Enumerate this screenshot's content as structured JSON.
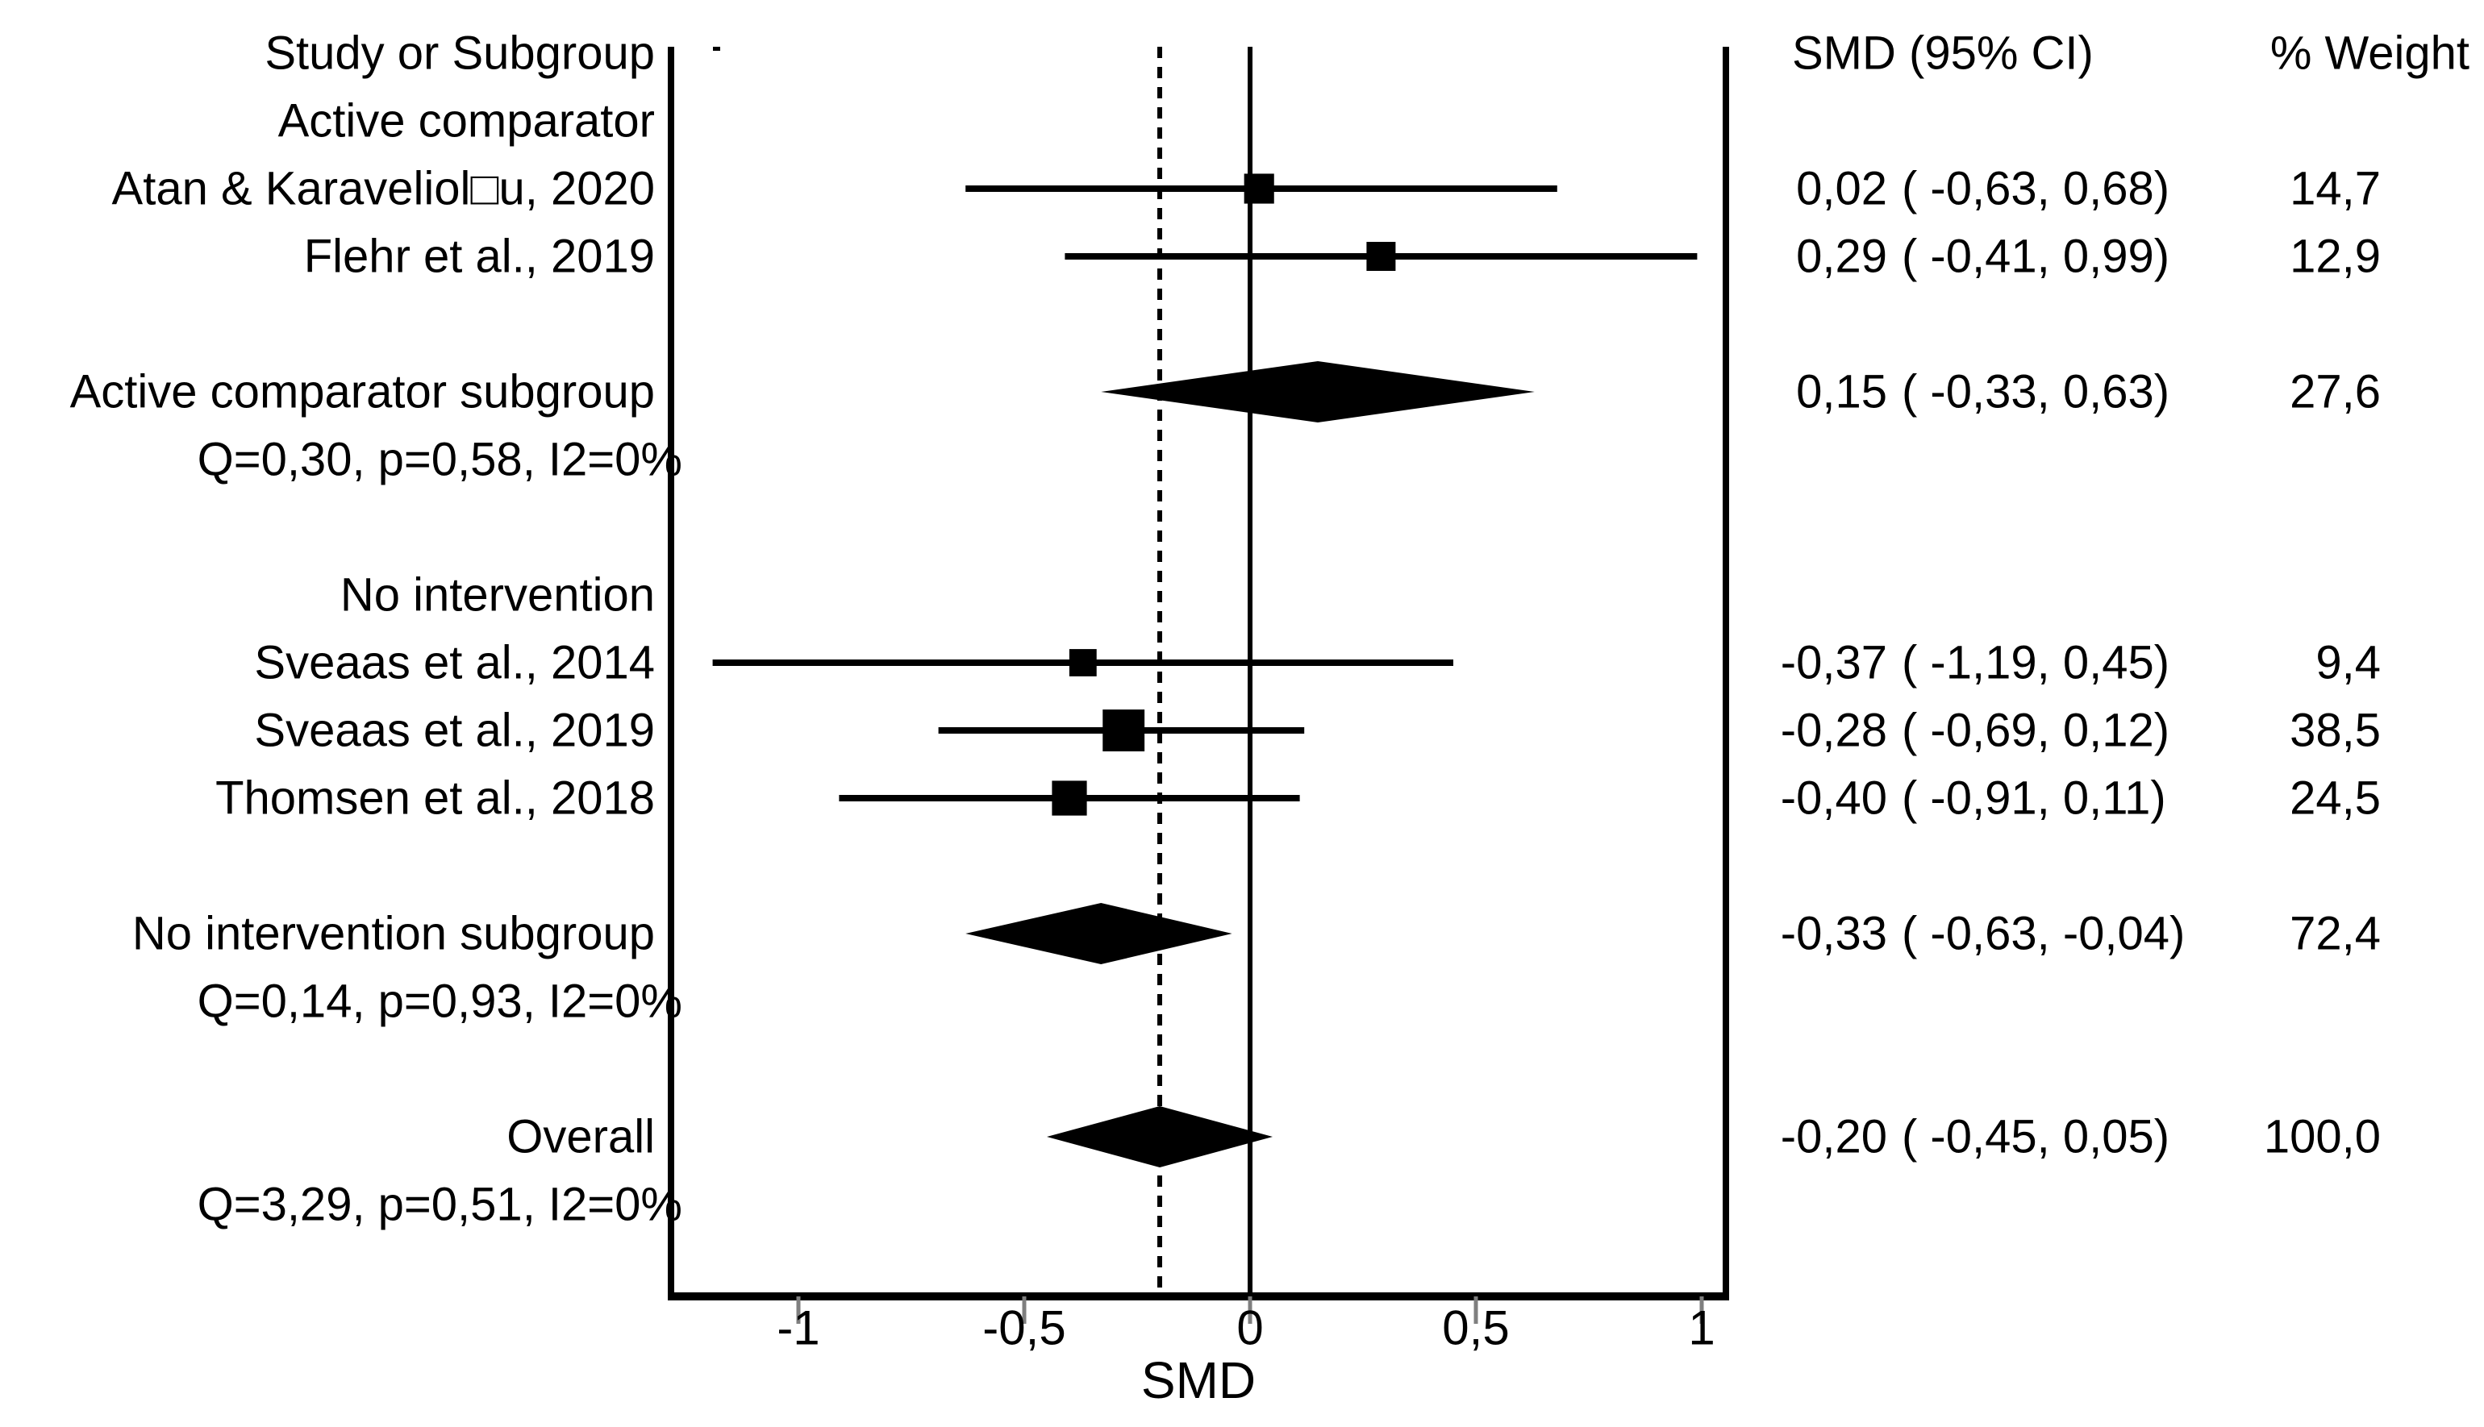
{
  "page": {
    "background": "#ffffff",
    "foreground": "#000000",
    "tick_color": "#7f7f7f"
  },
  "columns": {
    "study": "Study or Subgroup",
    "smd_ci": "SMD (95% CI)",
    "weight": "% Weight"
  },
  "chart_data": {
    "type": "scatter",
    "subtype": "forest-plot",
    "xlabel": "SMD",
    "xlim": [
      -1.28,
      1.05
    ],
    "grid": false,
    "x_ticks": [
      {
        "value": -1,
        "label": "-1"
      },
      {
        "value": -0.5,
        "label": "-0,5"
      },
      {
        "value": 0,
        "label": "0"
      },
      {
        "value": 0.5,
        "label": "0,5"
      },
      {
        "value": 1,
        "label": "1"
      }
    ],
    "reference_line": {
      "value": 0,
      "style": "solid"
    },
    "pooled_line": {
      "value": -0.2,
      "style": "dashed"
    },
    "rows": [
      {
        "slot": 1,
        "type": "group_label",
        "label": "Active comparator"
      },
      {
        "slot": 2,
        "type": "study",
        "label": "Atan & Karaveliol□u, 2020",
        "smd": 0.02,
        "ci_low": -0.63,
        "ci_high": 0.68,
        "weight": 14.7,
        "smd_text": "0,02",
        "ci_text": "( -0,63,  0,68)",
        "weight_text": "14,7"
      },
      {
        "slot": 3,
        "type": "study",
        "label": "Flehr et al., 2019",
        "smd": 0.29,
        "ci_low": -0.41,
        "ci_high": 0.99,
        "weight": 12.9,
        "smd_text": "0,29",
        "ci_text": "( -0,41,  0,99)",
        "weight_text": "12,9"
      },
      {
        "slot": 5,
        "type": "summary",
        "label": "Active comparator subgroup",
        "smd": 0.15,
        "ci_low": -0.33,
        "ci_high": 0.63,
        "weight": 27.6,
        "smd_text": "0,15",
        "ci_text": "( -0,33,  0,63)",
        "weight_text": "27,6"
      },
      {
        "slot": 6,
        "type": "stat",
        "label": "Q=0,30, p=0,58, I2=0%"
      },
      {
        "slot": 8,
        "type": "group_label",
        "label": "No intervention"
      },
      {
        "slot": 9,
        "type": "study",
        "label": "Sveaas et al., 2014",
        "smd": -0.37,
        "ci_low": -1.19,
        "ci_high": 0.45,
        "weight": 9.4,
        "smd_text": "-0,37",
        "ci_text": "( -1,19,  0,45)",
        "weight_text": "9,4"
      },
      {
        "slot": 10,
        "type": "study",
        "label": "Sveaas et al., 2019",
        "smd": -0.28,
        "ci_low": -0.69,
        "ci_high": 0.12,
        "weight": 38.5,
        "smd_text": "-0,28",
        "ci_text": "( -0,69,  0,12)",
        "weight_text": "38,5"
      },
      {
        "slot": 11,
        "type": "study",
        "label": "Thomsen et al., 2018",
        "smd": -0.4,
        "ci_low": -0.91,
        "ci_high": 0.11,
        "weight": 24.5,
        "smd_text": "-0,40",
        "ci_text": "( -0,91,  0,11)",
        "weight_text": "24,5"
      },
      {
        "slot": 13,
        "type": "summary",
        "label": "No intervention subgroup",
        "smd": -0.33,
        "ci_low": -0.63,
        "ci_high": -0.04,
        "weight": 72.4,
        "smd_text": "-0,33",
        "ci_text": "( -0,63, -0,04)",
        "weight_text": "72,4"
      },
      {
        "slot": 14,
        "type": "stat",
        "label": "Q=0,14, p=0,93, I2=0%"
      },
      {
        "slot": 16,
        "type": "summary",
        "label": "Overall",
        "smd": -0.2,
        "ci_low": -0.45,
        "ci_high": 0.05,
        "weight": 100.0,
        "smd_text": "-0,20",
        "ci_text": "( -0,45,  0,05)",
        "weight_text": "100,0"
      },
      {
        "slot": 17,
        "type": "stat",
        "label": "Q=3,29, p=0,51, I2=0%"
      }
    ]
  }
}
